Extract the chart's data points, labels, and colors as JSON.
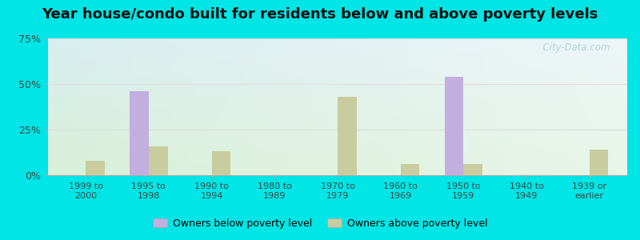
{
  "title": "Year house/condo built for residents below and above poverty levels",
  "categories": [
    "1999 to\n2000",
    "1995 to\n1998",
    "1990 to\n1994",
    "1980 to\n1989",
    "1970 to\n1979",
    "1960 to\n1969",
    "1950 to\n1959",
    "1940 to\n1949",
    "1939 or\nearlier"
  ],
  "below_poverty": [
    0,
    46,
    0,
    0,
    0,
    0,
    54,
    0,
    0
  ],
  "above_poverty": [
    8,
    16,
    13,
    0,
    43,
    6,
    6,
    0,
    14
  ],
  "below_color": "#c3aee0",
  "above_color": "#c8cc9f",
  "ylim": [
    0,
    75
  ],
  "yticks": [
    0,
    25,
    50,
    75
  ],
  "ytick_labels": [
    "0%",
    "25%",
    "50%",
    "75%"
  ],
  "bg_topleft": "#daf0ee",
  "bg_topright": "#e8f4f8",
  "bg_bottomleft": "#d8f0d8",
  "bg_bottomright": "#e8f5e8",
  "outer_background": "#00e5e5",
  "legend_below": "Owners below poverty level",
  "legend_above": "Owners above poverty level",
  "bar_width": 0.3,
  "title_fontsize": 13,
  "watermark": "  City-Data.com",
  "grid_color": "#e8e8e8",
  "spine_color": "#cccccc"
}
